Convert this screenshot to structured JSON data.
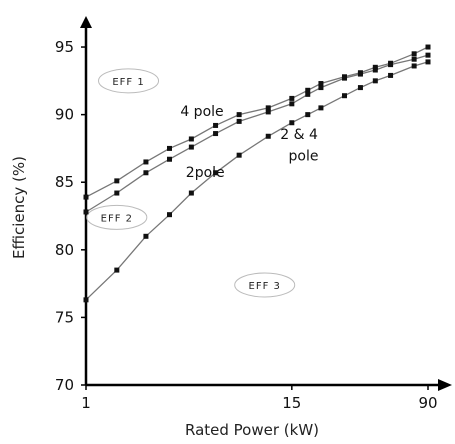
{
  "chart_data": {
    "type": "line",
    "title": "",
    "xlabel": "Rated Power (kW)",
    "ylabel": "Efficiency (%)",
    "xscale": "log",
    "xlim": [
      1,
      90
    ],
    "ylim": [
      70,
      97
    ],
    "xticks": [
      "1",
      "15",
      "90"
    ],
    "yticks": [
      "70",
      "75",
      "80",
      "85",
      "90",
      "95"
    ],
    "grid": false,
    "series": [
      {
        "name": "4 pole",
        "x": [
          1,
          1.5,
          2.2,
          3,
          4,
          5.5,
          7.5,
          11,
          15,
          18.5,
          22,
          30,
          37,
          45,
          55,
          75,
          90
        ],
        "y": [
          83.9,
          85.1,
          86.5,
          87.5,
          88.2,
          89.2,
          90.0,
          90.5,
          91.2,
          91.8,
          92.3,
          92.8,
          93.1,
          93.5,
          93.8,
          94.5,
          95.0
        ]
      },
      {
        "name": "2pole",
        "x": [
          1,
          1.5,
          2.2,
          3,
          4,
          5.5,
          7.5,
          11,
          15,
          18.5,
          22,
          30,
          37,
          45,
          55,
          75,
          90
        ],
        "y": [
          82.8,
          84.2,
          85.7,
          86.7,
          87.6,
          88.6,
          89.5,
          90.2,
          90.8,
          91.5,
          92.0,
          92.7,
          93.0,
          93.3,
          93.7,
          94.1,
          94.4
        ]
      },
      {
        "name": "2 & 4 pole",
        "x": [
          1,
          1.5,
          2.2,
          3,
          4,
          5.5,
          7.5,
          11,
          15,
          18.5,
          22,
          30,
          37,
          45,
          55,
          75,
          90
        ],
        "y": [
          76.3,
          78.5,
          81.0,
          82.6,
          84.2,
          85.7,
          87.0,
          88.4,
          89.4,
          90.0,
          90.5,
          91.4,
          92.0,
          92.5,
          92.9,
          93.6,
          93.9
        ]
      }
    ],
    "annotations": [
      {
        "text": "4 pole",
        "x": 4.6,
        "y": 89.9
      },
      {
        "text": "2pole",
        "x": 4.8,
        "y": 85.4
      },
      {
        "text": "2 & 4",
        "x": 16.5,
        "y": 88.2
      },
      {
        "text": "pole",
        "x": 17.5,
        "y": 86.6
      }
    ],
    "regions": [
      {
        "text": "EFF 1",
        "x": 1.75,
        "y": 92.5
      },
      {
        "text": "EFF 2",
        "x": 1.5,
        "y": 82.4
      },
      {
        "text": "EFF 3",
        "x": 10.5,
        "y": 77.4
      }
    ],
    "colors": {
      "line": "#777777",
      "marker": "#111111",
      "axis": "#000000"
    }
  }
}
